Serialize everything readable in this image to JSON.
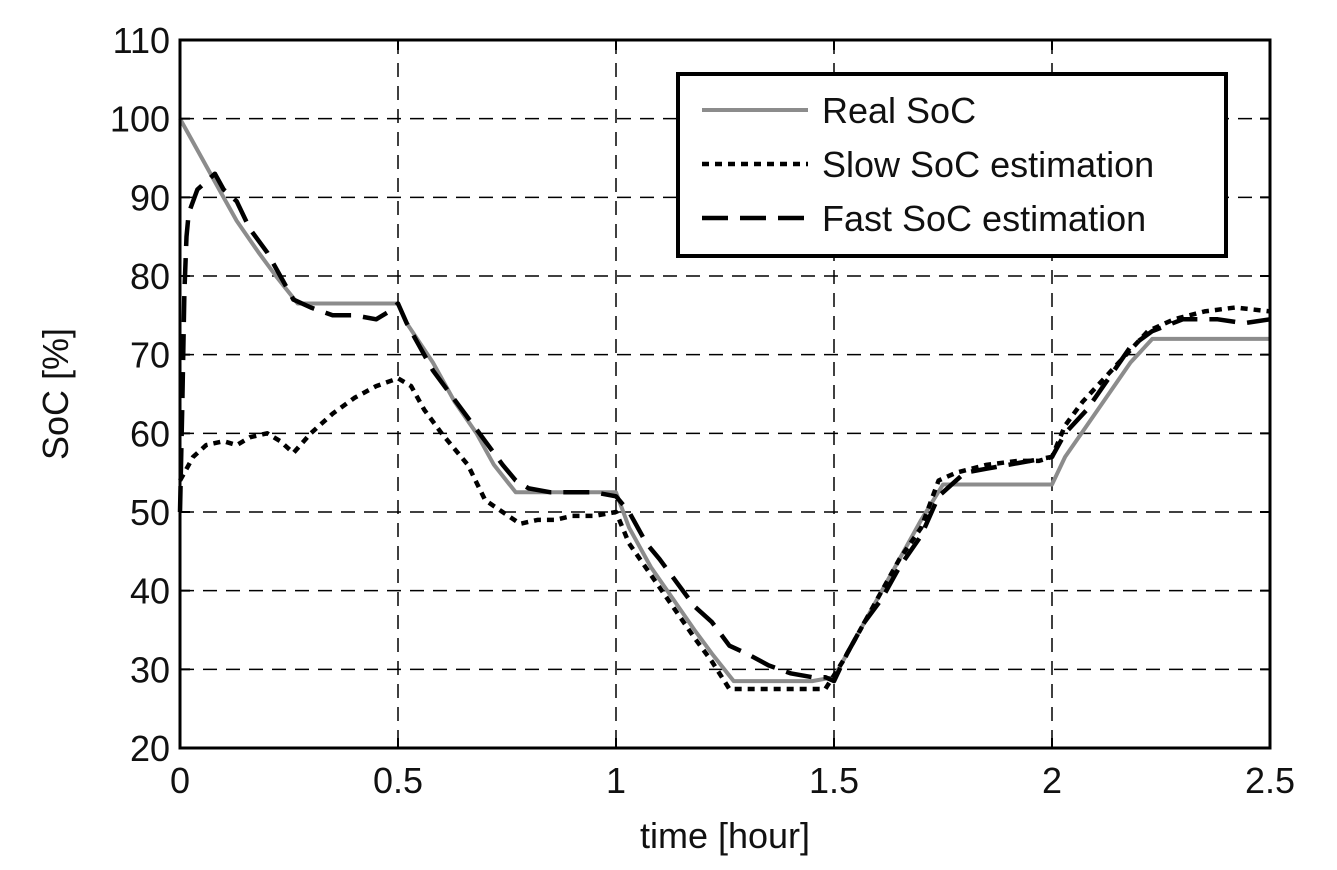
{
  "chart_data": {
    "type": "line",
    "title": "",
    "xlabel": "time [hour]",
    "ylabel": "SoC [%]",
    "xlim": [
      0,
      2.5
    ],
    "ylim": [
      20,
      110
    ],
    "xticks": [
      0,
      0.5,
      1,
      1.5,
      2,
      2.5
    ],
    "xtick_labels": [
      "0",
      "0.5",
      "1",
      "1.5",
      "2",
      "2.5"
    ],
    "yticks": [
      20,
      30,
      40,
      50,
      60,
      70,
      80,
      90,
      100,
      110
    ],
    "ytick_labels": [
      "20",
      "30",
      "40",
      "50",
      "60",
      "70",
      "80",
      "90",
      "100",
      "110"
    ],
    "grid": true,
    "legend_position": "top-right",
    "series": [
      {
        "name": "Real SoC",
        "style": "solid",
        "color": "#8c8c8c",
        "x": [
          0,
          0.02,
          0.05,
          0.09,
          0.13,
          0.18,
          0.22,
          0.27,
          0.3,
          0.4,
          0.5,
          0.52,
          0.58,
          0.63,
          0.68,
          0.72,
          0.77,
          0.85,
          0.95,
          1.0,
          1.03,
          1.08,
          1.13,
          1.18,
          1.22,
          1.27,
          1.35,
          1.45,
          1.5,
          1.55,
          1.6,
          1.65,
          1.7,
          1.75,
          1.85,
          1.95,
          2.0,
          2.03,
          2.08,
          2.13,
          2.18,
          2.23,
          2.35,
          2.5
        ],
        "y": [
          100,
          98,
          95,
          91,
          87,
          83,
          80,
          76.5,
          76.5,
          76.5,
          76.5,
          74,
          69,
          64,
          60,
          56,
          52.5,
          52.5,
          52.5,
          52.5,
          48,
          43,
          39,
          35,
          32,
          28.5,
          28.5,
          28.5,
          29,
          34,
          39,
          44,
          49,
          53.5,
          53.5,
          53.5,
          53.5,
          57,
          61,
          65,
          69,
          72,
          72,
          72
        ]
      },
      {
        "name": "Slow SoC estimation",
        "style": "dotted",
        "color": "#000000",
        "x": [
          0,
          0.01,
          0.03,
          0.06,
          0.1,
          0.13,
          0.16,
          0.2,
          0.23,
          0.26,
          0.3,
          0.35,
          0.4,
          0.45,
          0.5,
          0.53,
          0.56,
          0.6,
          0.63,
          0.66,
          0.7,
          0.74,
          0.78,
          0.82,
          0.86,
          0.9,
          0.95,
          1.0,
          1.03,
          1.08,
          1.13,
          1.18,
          1.22,
          1.26,
          1.3,
          1.35,
          1.4,
          1.45,
          1.48,
          1.52,
          1.56,
          1.6,
          1.65,
          1.7,
          1.74,
          1.78,
          1.85,
          1.92,
          1.97,
          2.0,
          2.03,
          2.07,
          2.12,
          2.17,
          2.22,
          2.28,
          2.35,
          2.42,
          2.5
        ],
        "y": [
          54,
          55,
          57,
          58.5,
          59,
          58.5,
          59.5,
          60,
          59,
          57.5,
          60,
          62.5,
          64.5,
          66,
          67,
          66,
          63,
          60,
          58,
          56,
          51.5,
          50,
          48.5,
          49,
          49,
          49.5,
          49.5,
          50,
          46,
          42,
          38,
          34,
          31,
          27.5,
          27.5,
          27.5,
          27.5,
          27.5,
          27.5,
          31,
          35,
          39,
          44,
          48,
          54,
          55,
          56,
          56.5,
          56.5,
          57,
          61,
          64,
          67,
          70,
          73,
          74.5,
          75.5,
          76,
          75.5
        ]
      },
      {
        "name": "Fast SoC estimation",
        "style": "dashed",
        "color": "#000000",
        "x": [
          0,
          0.005,
          0.01,
          0.015,
          0.02,
          0.04,
          0.06,
          0.08,
          0.1,
          0.13,
          0.16,
          0.2,
          0.23,
          0.26,
          0.3,
          0.35,
          0.4,
          0.45,
          0.48,
          0.5,
          0.52,
          0.55,
          0.58,
          0.62,
          0.66,
          0.7,
          0.74,
          0.77,
          0.8,
          0.85,
          0.9,
          0.95,
          1.0,
          1.03,
          1.07,
          1.1,
          1.14,
          1.18,
          1.22,
          1.26,
          1.3,
          1.35,
          1.4,
          1.45,
          1.48,
          1.5,
          1.53,
          1.57,
          1.61,
          1.65,
          1.7,
          1.74,
          1.8,
          1.85,
          1.9,
          1.95,
          2.0,
          2.03,
          2.08,
          2.13,
          2.18,
          2.23,
          2.3,
          2.38,
          2.44,
          2.5
        ],
        "y": [
          50,
          63,
          78,
          85,
          88,
          91,
          92,
          93,
          91,
          89.5,
          86,
          83,
          80,
          77,
          76,
          75,
          75,
          74.5,
          75.5,
          76.5,
          74,
          71,
          68,
          65,
          62,
          59,
          56,
          54,
          53,
          52.5,
          52.5,
          52.5,
          52,
          50,
          46,
          44,
          41,
          38,
          36,
          33,
          32,
          30.5,
          29.5,
          29,
          29,
          28.5,
          32,
          36,
          39,
          43,
          47,
          52,
          55,
          55.5,
          56,
          56.5,
          57,
          60,
          63,
          67,
          71,
          73,
          74.5,
          74.5,
          74,
          74.5
        ]
      }
    ]
  }
}
